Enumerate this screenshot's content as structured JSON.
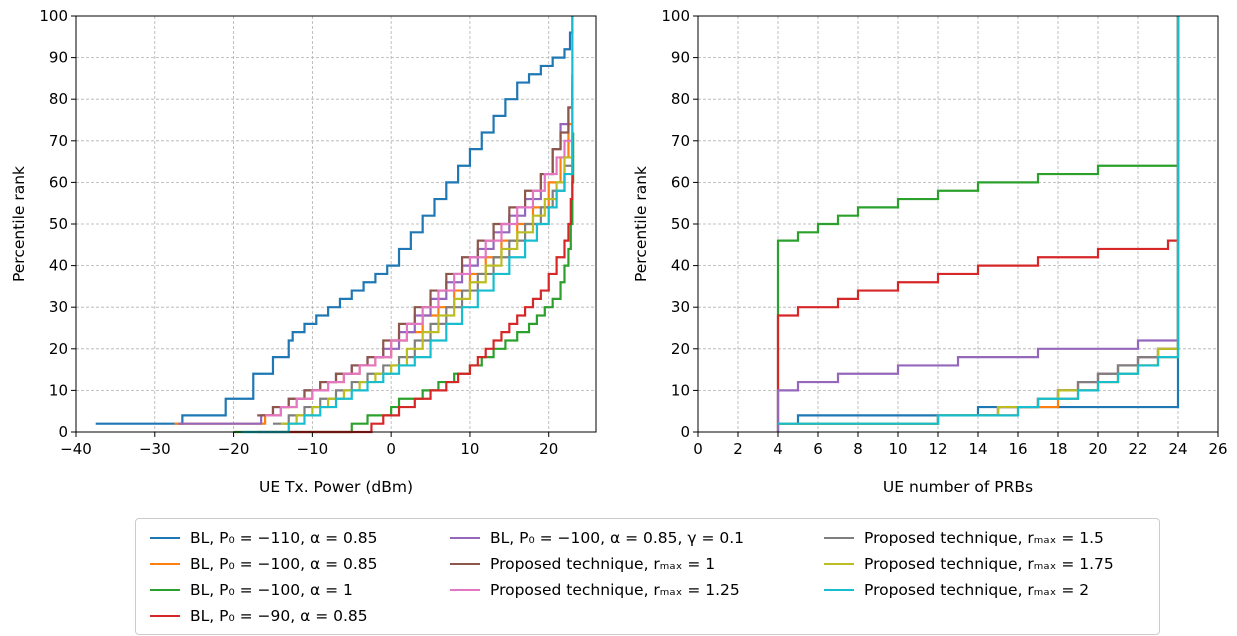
{
  "series_styles": [
    {
      "color": "#1f77b4",
      "legend": "BL, P₀ = −110, α = 0.85"
    },
    {
      "color": "#ff7f0e",
      "legend": "BL, P₀ = −100, α = 0.85"
    },
    {
      "color": "#2ca02c",
      "legend": "BL, P₀ = −100, α = 1"
    },
    {
      "color": "#d62728",
      "legend": "BL, P₀ = −90, α = 0.85"
    },
    {
      "color": "#9467bd",
      "legend": "BL, P₀ = −100, α = 0.85, γ = 0.1"
    },
    {
      "color": "#8c564b",
      "legend": "Proposed technique, rₘₐₓ = 1"
    },
    {
      "color": "#e377c2",
      "legend": "Proposed technique, rₘₐₓ = 1.25"
    },
    {
      "color": "#7f7f7f",
      "legend": "Proposed technique, rₘₐₓ = 1.5"
    },
    {
      "color": "#bcbd22",
      "legend": "Proposed technique, rₘₐₓ = 1.75"
    },
    {
      "color": "#17becf",
      "legend": "Proposed technique, rₘₐₓ = 2"
    }
  ],
  "chart_data": [
    {
      "type": "line",
      "step": true,
      "xlabel": "UE Tx. Power (dBm)",
      "ylabel": "Percentile rank",
      "xlim": [
        -40,
        26
      ],
      "ylim": [
        0,
        100
      ],
      "xticks": [
        -40,
        -30,
        -20,
        -10,
        0,
        10,
        20
      ],
      "xtick_labels": [
        "−40",
        "−30",
        "−20",
        "−10",
        "0",
        "10",
        "20"
      ],
      "yticks": [
        0,
        10,
        20,
        30,
        40,
        50,
        60,
        70,
        80,
        90,
        100
      ],
      "ytick_labels": [
        "0",
        "10",
        "20",
        "30",
        "40",
        "50",
        "60",
        "70",
        "80",
        "90",
        "100"
      ],
      "grid": true,
      "series": [
        {
          "name": "BL, P₀ = −110, α = 0.85",
          "color": "#1f77b4",
          "x": [
            -37.5,
            -27,
            -26.5,
            -21,
            -17.5,
            -15,
            -13,
            -12.5,
            -11,
            -9.5,
            -8,
            -6.5,
            -5,
            -3.5,
            -2,
            -0.5,
            1,
            2.5,
            4,
            5.5,
            7,
            8.5,
            10,
            11.5,
            13,
            14.5,
            16,
            17.5,
            19,
            20.5,
            22,
            22.7,
            23
          ],
          "y": [
            2,
            2,
            4,
            8,
            14,
            18,
            22,
            24,
            26,
            28,
            30,
            32,
            34,
            36,
            38,
            40,
            44,
            48,
            52,
            56,
            60,
            64,
            68,
            72,
            76,
            80,
            84,
            86,
            88,
            90,
            92,
            96,
            100
          ]
        },
        {
          "name": "BL, P₀ = −100, α = 0.85",
          "color": "#ff7f0e",
          "x": [
            -27.5,
            -16,
            -14,
            -12,
            -10,
            -8,
            -6,
            -4,
            -2,
            0,
            2,
            4,
            6,
            8,
            10,
            12,
            14,
            16,
            18,
            20,
            21.5,
            22.5,
            23
          ],
          "y": [
            2,
            4,
            6,
            8,
            10,
            12,
            14,
            16,
            18,
            22,
            24,
            28,
            30,
            34,
            38,
            42,
            46,
            50,
            54,
            60,
            66,
            74,
            82
          ]
        },
        {
          "name": "BL, P₀ = −100, α = 1",
          "color": "#2ca02c",
          "x": [
            -20,
            -6,
            -5,
            -3,
            0,
            1,
            4,
            6,
            8,
            10,
            11.5,
            13,
            14.5,
            16,
            17.5,
            18.5,
            19.5,
            20.5,
            21.5,
            22,
            22.5,
            22.8,
            23,
            23.1
          ],
          "y": [
            0,
            0,
            2,
            4,
            6,
            8,
            10,
            12,
            14,
            16,
            18,
            20,
            22,
            24,
            26,
            28,
            30,
            32,
            36,
            40,
            44,
            50,
            60,
            72
          ]
        },
        {
          "name": "BL, P₀ = −90, α = 0.85",
          "color": "#d62728",
          "x": [
            -17,
            -2.5,
            -1,
            1,
            3,
            5,
            7,
            8.5,
            10,
            11,
            12,
            13,
            14,
            15,
            16,
            17,
            18,
            19,
            20,
            21,
            22,
            22.5,
            22.8,
            23
          ],
          "y": [
            0,
            2,
            4,
            6,
            8,
            10,
            12,
            14,
            16,
            18,
            20,
            22,
            24,
            26,
            28,
            30,
            32,
            34,
            38,
            42,
            46,
            50,
            56,
            64
          ]
        },
        {
          "name": "BL, P₀ = −100, α = 0.85, γ = 0.1",
          "color": "#9467bd",
          "x": [
            -27,
            -16.5,
            -15,
            -13,
            -11,
            -9,
            -7,
            -5,
            -3,
            -1,
            1,
            3,
            5,
            7,
            9,
            11,
            13,
            15,
            17,
            19,
            20.5,
            21.5,
            22.5,
            23
          ],
          "y": [
            2,
            4,
            6,
            8,
            10,
            12,
            14,
            16,
            18,
            20,
            24,
            28,
            32,
            36,
            40,
            44,
            48,
            52,
            56,
            62,
            68,
            74,
            78,
            84
          ]
        },
        {
          "name": "Proposed technique, rₘₐₓ = 1",
          "color": "#8c564b",
          "x": [
            -17,
            -15,
            -13,
            -11,
            -9,
            -7,
            -5,
            -3,
            -1,
            1,
            3,
            5,
            7,
            9,
            11,
            13,
            15,
            17,
            19,
            20.5,
            21.5,
            22.5,
            23
          ],
          "y": [
            4,
            6,
            8,
            10,
            12,
            14,
            16,
            18,
            22,
            26,
            30,
            34,
            38,
            42,
            46,
            50,
            54,
            58,
            62,
            68,
            72,
            78,
            86
          ]
        },
        {
          "name": "Proposed technique, rₘₐₓ = 1.25",
          "color": "#e377c2",
          "x": [
            -16,
            -14,
            -12,
            -10,
            -8,
            -6,
            -4,
            -2,
            0,
            2,
            4,
            6,
            8,
            10,
            12,
            14,
            16,
            18,
            19.5,
            21,
            22,
            23
          ],
          "y": [
            4,
            6,
            8,
            10,
            12,
            14,
            16,
            18,
            22,
            26,
            30,
            34,
            38,
            42,
            46,
            50,
            54,
            58,
            62,
            66,
            70,
            74
          ]
        },
        {
          "name": "Proposed technique, rₘₐₓ = 1.5",
          "color": "#7f7f7f",
          "x": [
            -15,
            -13,
            -11,
            -9,
            -7,
            -5,
            -3,
            -1,
            1,
            3,
            5,
            7,
            9,
            11,
            13,
            15,
            17,
            19,
            20.5,
            22,
            23
          ],
          "y": [
            2,
            4,
            6,
            8,
            10,
            12,
            14,
            16,
            18,
            22,
            26,
            30,
            34,
            38,
            42,
            46,
            50,
            54,
            58,
            64,
            70
          ]
        },
        {
          "name": "Proposed technique, rₘₐₓ = 1.75",
          "color": "#bcbd22",
          "x": [
            -14,
            -12,
            -10,
            -8,
            -6,
            -4,
            -2,
            0,
            2,
            4,
            6,
            8,
            10,
            12,
            14,
            16,
            18,
            19.5,
            21,
            22,
            23
          ],
          "y": [
            2,
            4,
            6,
            8,
            10,
            12,
            14,
            16,
            20,
            24,
            28,
            32,
            36,
            40,
            44,
            48,
            52,
            56,
            60,
            66,
            72
          ]
        },
        {
          "name": "Proposed technique, rₘₐₓ = 2",
          "color": "#17becf",
          "x": [
            -19,
            -13,
            -11,
            -9,
            -7,
            -5,
            -3,
            -1,
            1,
            3,
            5,
            7,
            9,
            11,
            13,
            15,
            17,
            18.5,
            20,
            21,
            22,
            23
          ],
          "y": [
            0,
            2,
            4,
            6,
            8,
            10,
            12,
            14,
            16,
            18,
            22,
            26,
            30,
            34,
            38,
            42,
            46,
            50,
            54,
            58,
            62,
            100
          ]
        }
      ]
    },
    {
      "type": "line",
      "step": true,
      "xlabel": "UE number of PRBs",
      "ylabel": "Percentile rank",
      "xlim": [
        0,
        26
      ],
      "ylim": [
        0,
        100
      ],
      "xticks": [
        0,
        2,
        4,
        6,
        8,
        10,
        12,
        14,
        16,
        18,
        20,
        22,
        24,
        26
      ],
      "xtick_labels": [
        "0",
        "2",
        "4",
        "6",
        "8",
        "10",
        "12",
        "14",
        "16",
        "18",
        "20",
        "22",
        "24",
        "26"
      ],
      "yticks": [
        0,
        10,
        20,
        30,
        40,
        50,
        60,
        70,
        80,
        90,
        100
      ],
      "ytick_labels": [
        "0",
        "10",
        "20",
        "30",
        "40",
        "50",
        "60",
        "70",
        "80",
        "90",
        "100"
      ],
      "grid": true,
      "series": [
        {
          "name": "BL, P₀ = −110, α = 0.85",
          "color": "#1f77b4",
          "x": [
            4,
            5,
            14,
            24,
            24
          ],
          "y": [
            2,
            4,
            6,
            6,
            100
          ]
        },
        {
          "name": "BL, P₀ = −100, α = 0.85",
          "color": "#ff7f0e",
          "x": [
            4,
            12,
            14,
            16,
            18,
            19,
            20,
            21,
            22,
            23,
            24,
            24
          ],
          "y": [
            2,
            4,
            4,
            6,
            8,
            10,
            12,
            14,
            16,
            18,
            20,
            100
          ]
        },
        {
          "name": "BL, P₀ = −100, α = 1",
          "color": "#2ca02c",
          "x": [
            4,
            4,
            5,
            6,
            7,
            8,
            10,
            12,
            14,
            17,
            20,
            24,
            24
          ],
          "y": [
            0,
            46,
            48,
            50,
            52,
            54,
            56,
            58,
            60,
            62,
            64,
            64,
            100
          ]
        },
        {
          "name": "BL, P₀ = −90, α = 0.85",
          "color": "#d62728",
          "x": [
            4,
            4,
            5,
            7,
            8,
            10,
            12,
            14,
            17,
            20,
            23.5,
            24,
            24
          ],
          "y": [
            0,
            28,
            30,
            32,
            34,
            36,
            38,
            40,
            42,
            44,
            46,
            46,
            100
          ]
        },
        {
          "name": "BL, P₀ = −100, α = 0.85, γ = 0.1",
          "color": "#9467bd",
          "x": [
            4,
            4,
            5,
            7,
            10,
            13,
            17,
            22,
            24,
            24
          ],
          "y": [
            0,
            10,
            12,
            14,
            16,
            18,
            20,
            22,
            22,
            100
          ]
        },
        {
          "name": "Proposed technique, rₘₐₓ = 1",
          "color": "#8c564b",
          "x": [
            4,
            12,
            15,
            17,
            18,
            19,
            20,
            21,
            22,
            23,
            24,
            24
          ],
          "y": [
            2,
            4,
            6,
            8,
            10,
            12,
            14,
            16,
            18,
            20,
            20,
            100
          ]
        },
        {
          "name": "Proposed technique, rₘₐₓ = 1.25",
          "color": "#e377c2",
          "x": [
            4,
            12,
            15,
            17,
            18,
            19,
            20,
            21,
            22,
            23,
            24,
            24
          ],
          "y": [
            2,
            4,
            6,
            8,
            10,
            12,
            14,
            16,
            18,
            20,
            20,
            100
          ]
        },
        {
          "name": "Proposed technique, rₘₐₓ = 1.5",
          "color": "#7f7f7f",
          "x": [
            4,
            12,
            15,
            17,
            18,
            19,
            20,
            21,
            22,
            23,
            24,
            24
          ],
          "y": [
            2,
            4,
            6,
            8,
            10,
            12,
            14,
            16,
            18,
            20,
            20,
            100
          ]
        },
        {
          "name": "Proposed technique, rₘₐₓ = 1.75",
          "color": "#bcbd22",
          "x": [
            4,
            12,
            15,
            16,
            17,
            18,
            19,
            20,
            21,
            22,
            23,
            24,
            24
          ],
          "y": [
            2,
            4,
            6,
            6,
            8,
            10,
            10,
            12,
            14,
            16,
            20,
            20,
            100
          ]
        },
        {
          "name": "Proposed technique, rₘₐₓ = 2",
          "color": "#17becf",
          "x": [
            4,
            12,
            16,
            17,
            19,
            20,
            21,
            22,
            23,
            24,
            24
          ],
          "y": [
            2,
            4,
            6,
            8,
            10,
            12,
            14,
            16,
            18,
            18,
            100
          ]
        }
      ]
    }
  ]
}
